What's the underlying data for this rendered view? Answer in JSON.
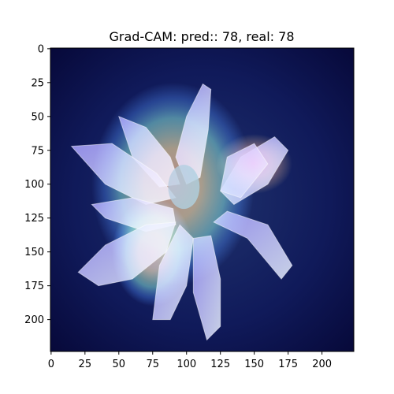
{
  "chart_data": {
    "type": "heatmap",
    "title": "Grad-CAM: pred:: 78, real: 78",
    "xlabel": "",
    "ylabel": "",
    "xlim": [
      -0.5,
      223.5
    ],
    "ylim": [
      223.5,
      -0.5
    ],
    "y_inverted": true,
    "grid": false,
    "x_ticks": [
      0,
      25,
      50,
      75,
      100,
      125,
      150,
      175,
      200
    ],
    "y_ticks": [
      0,
      25,
      50,
      75,
      100,
      125,
      150,
      175,
      200
    ],
    "image_size": [
      224,
      224
    ],
    "colormap": "jet",
    "overlay_subject": "lotus flower",
    "colors": {
      "background": "#0a0f4a",
      "petal": "#c8d4ff",
      "hot": "#e8443a",
      "warm": "#f6d25a",
      "mid": "#7ee3c8",
      "cool": "#3f7cf2"
    },
    "heat_regions": [
      {
        "cx": 90,
        "cy": 100,
        "rx": 60,
        "ry": 75,
        "level": "warm"
      },
      {
        "cx": 150,
        "cy": 85,
        "rx": 28,
        "ry": 22,
        "level": "hot"
      },
      {
        "cx": 75,
        "cy": 150,
        "rx": 30,
        "ry": 40,
        "level": "warm"
      }
    ]
  }
}
